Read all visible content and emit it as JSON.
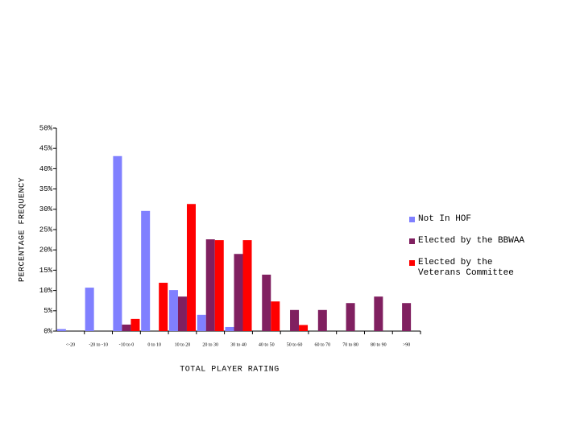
{
  "chart_data": {
    "type": "bar",
    "y_label": "PERCENTAGE FREQUENCY",
    "x_label": "TOTAL PLAYER RATING",
    "categories": [
      "<-20",
      "-20 to -10",
      "-10 to 0",
      "0 to 10",
      "10 to 20",
      "20 to 30",
      "30 to 40",
      "40 to 50",
      "50 to 60",
      "60 to 70",
      "70 to 80",
      "80 to 90",
      ">90"
    ],
    "series": [
      {
        "name": "Not In HOF",
        "color": "#8080ff",
        "values": [
          0.5,
          10.7,
          43.1,
          29.6,
          10.1,
          4.0,
          1.0,
          0,
          0,
          0,
          0,
          0,
          0
        ]
      },
      {
        "name": "Elected by the BBWAA",
        "color": "#802060",
        "values": [
          0,
          0,
          1.6,
          0,
          8.5,
          22.6,
          19.0,
          13.9,
          5.2,
          5.2,
          6.9,
          8.5,
          6.9
        ]
      },
      {
        "name": "Elected by the Veterans Committee",
        "color": "#ff0000",
        "values": [
          0,
          0,
          3.0,
          11.9,
          31.3,
          22.4,
          22.4,
          7.3,
          1.5,
          0,
          0,
          0,
          0
        ]
      }
    ],
    "ylim": [
      0,
      50
    ],
    "yticks": [
      {
        "value": 0,
        "label": "0%"
      },
      {
        "value": 5,
        "label": "5%"
      },
      {
        "value": 10,
        "label": "10%"
      },
      {
        "value": 15,
        "label": "15%"
      },
      {
        "value": 20,
        "label": "20%"
      },
      {
        "value": 25,
        "label": "25%"
      },
      {
        "value": 30,
        "label": "30%"
      },
      {
        "value": 35,
        "label": "35%"
      },
      {
        "value": 40,
        "label": "40%"
      },
      {
        "value": 45,
        "label": "45%"
      },
      {
        "value": 50,
        "label": "50%"
      }
    ],
    "grid": false
  }
}
